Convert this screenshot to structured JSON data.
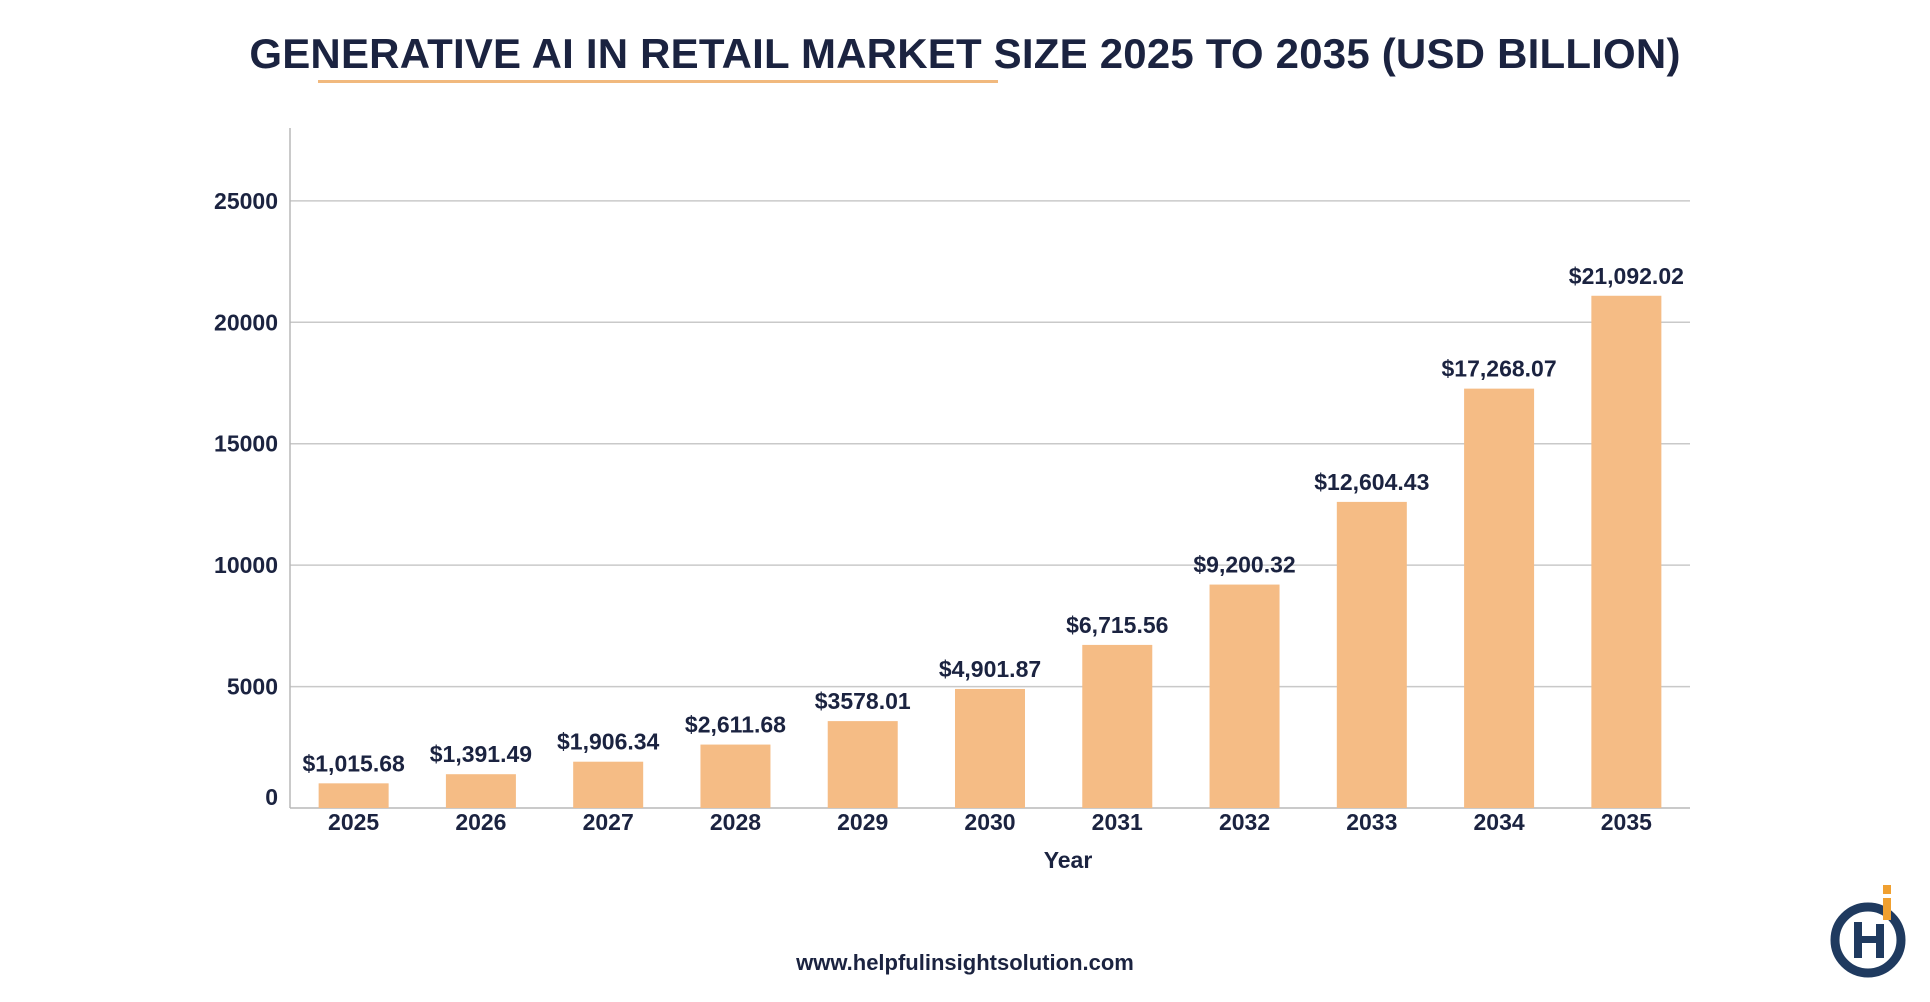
{
  "chart_data": {
    "type": "bar",
    "title": "GENERATIVE AI IN RETAIL MARKET SIZE 2025 TO 2035 (USD BILLION)",
    "xlabel": "Year",
    "ylabel": "",
    "categories": [
      "2025",
      "2026",
      "2027",
      "2028",
      "2029",
      "2030",
      "2031",
      "2032",
      "2033",
      "2034",
      "2035"
    ],
    "values": [
      1015.68,
      1391.49,
      1906.34,
      2611.68,
      3578.01,
      4901.87,
      6715.56,
      9200.32,
      12604.43,
      17268.07,
      21092.02
    ],
    "data_labels": [
      "$1,015.68",
      "$1,391.49",
      "$1,906.34",
      "$2,611.68",
      "$3578.01",
      "$4,901.87",
      "$6,715.56",
      "$9,200.32",
      "$12,604.43",
      "$17,268.07",
      "$21,092.02"
    ],
    "ylim": [
      0,
      28000
    ],
    "yticks": [
      0,
      5000,
      10000,
      15000,
      20000,
      25000
    ],
    "ytick_labels": [
      "0",
      "5000",
      "10000",
      "15000",
      "20000",
      "25000"
    ],
    "grid": true,
    "legend": "none",
    "bar_color": "#f5bc85",
    "grid_color": "#c9c9c9",
    "text_color": "#1b2340"
  },
  "footer": {
    "website": "www.helpfulinsightsolution.com"
  },
  "logo": {
    "icon": "company-logo-icon",
    "primary_color": "#1f3a5f",
    "accent_color": "#f0a030"
  }
}
